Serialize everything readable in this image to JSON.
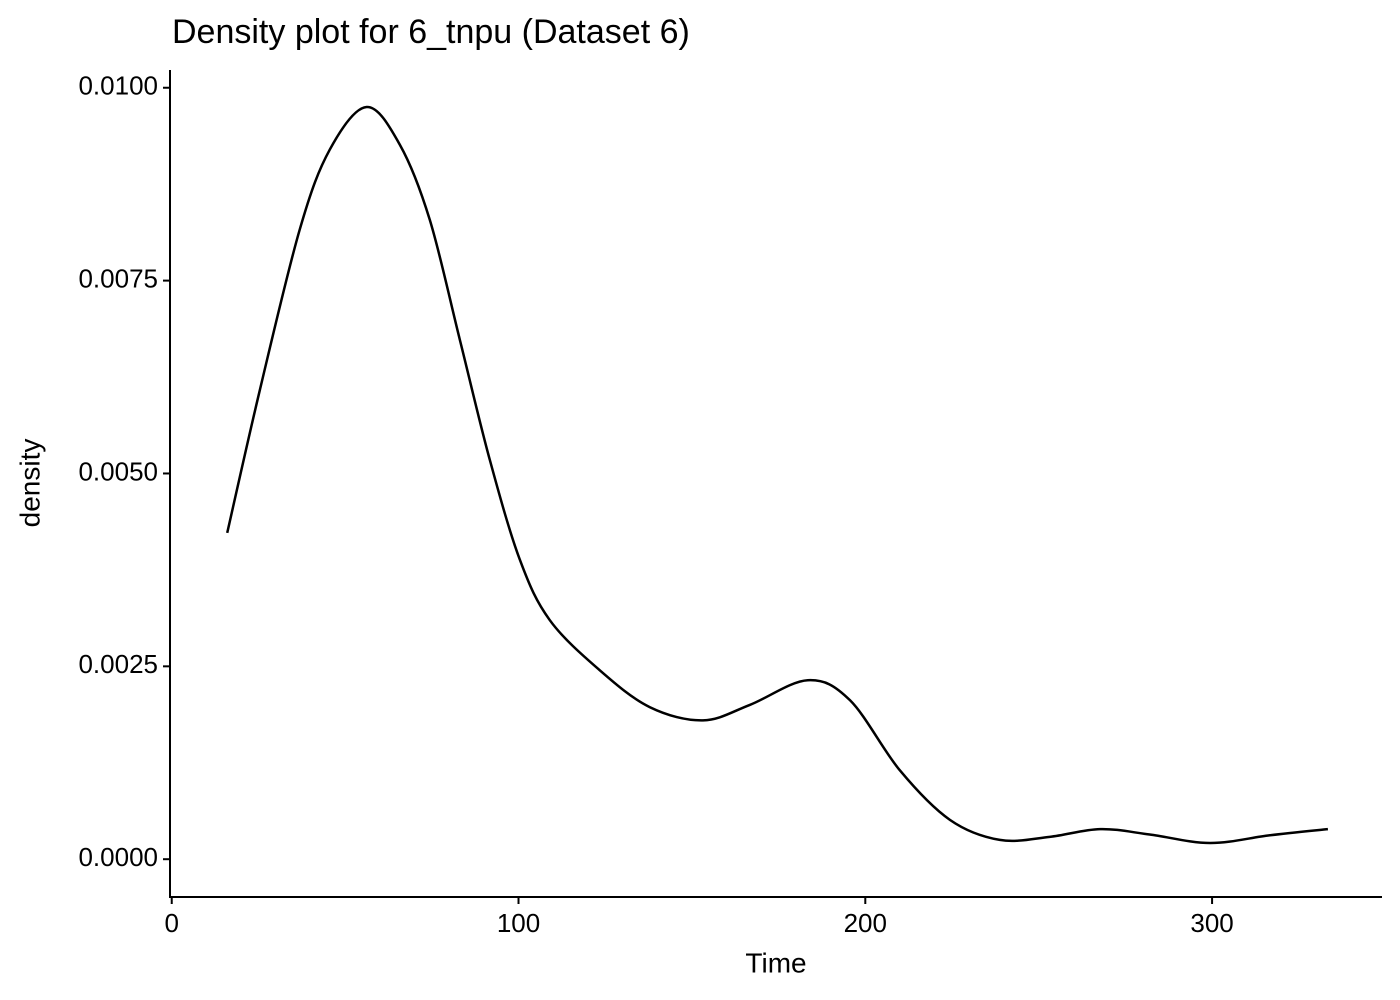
{
  "chart_data": {
    "type": "line",
    "title": "Density plot for 6_tnpu (Dataset 6)",
    "x_label": "Time",
    "y_label": "density",
    "x": [
      16,
      25.4,
      36.9,
      45.6,
      56.2,
      65.8,
      74.4,
      83.1,
      91.7,
      100.4,
      109,
      123.4,
      137.9,
      153.2,
      166.7,
      183.4,
      195.6,
      210,
      224.4,
      238.8,
      253.2,
      267.7,
      282,
      299.4,
      316.7,
      333.4
    ],
    "series": [
      {
        "name": "density",
        "color": "#000000",
        "values": [
          0.00423,
          0.00608,
          0.00816,
          0.0092,
          0.00975,
          0.00926,
          0.00829,
          0.00673,
          0.00518,
          0.00388,
          0.0031,
          0.00245,
          0.00197,
          0.0018,
          0.002,
          0.00232,
          0.00206,
          0.00115,
          0.00051,
          0.00025,
          0.00029,
          0.00039,
          0.00032,
          0.00021,
          0.00031,
          0.00039
        ]
      }
    ],
    "xlim": [
      -0.5,
      349
    ],
    "ylim": [
      -0.00049,
      0.01023
    ],
    "xticks": [
      0,
      100,
      200,
      300
    ],
    "yticks": [
      {
        "value": 0,
        "label": "0.0000"
      },
      {
        "value": 0.0025,
        "label": "0.0025"
      },
      {
        "value": 0.005,
        "label": "0.0050"
      },
      {
        "value": 0.0075,
        "label": "0.0075"
      },
      {
        "value": 0.01,
        "label": "0.0100"
      }
    ],
    "grid": false
  }
}
